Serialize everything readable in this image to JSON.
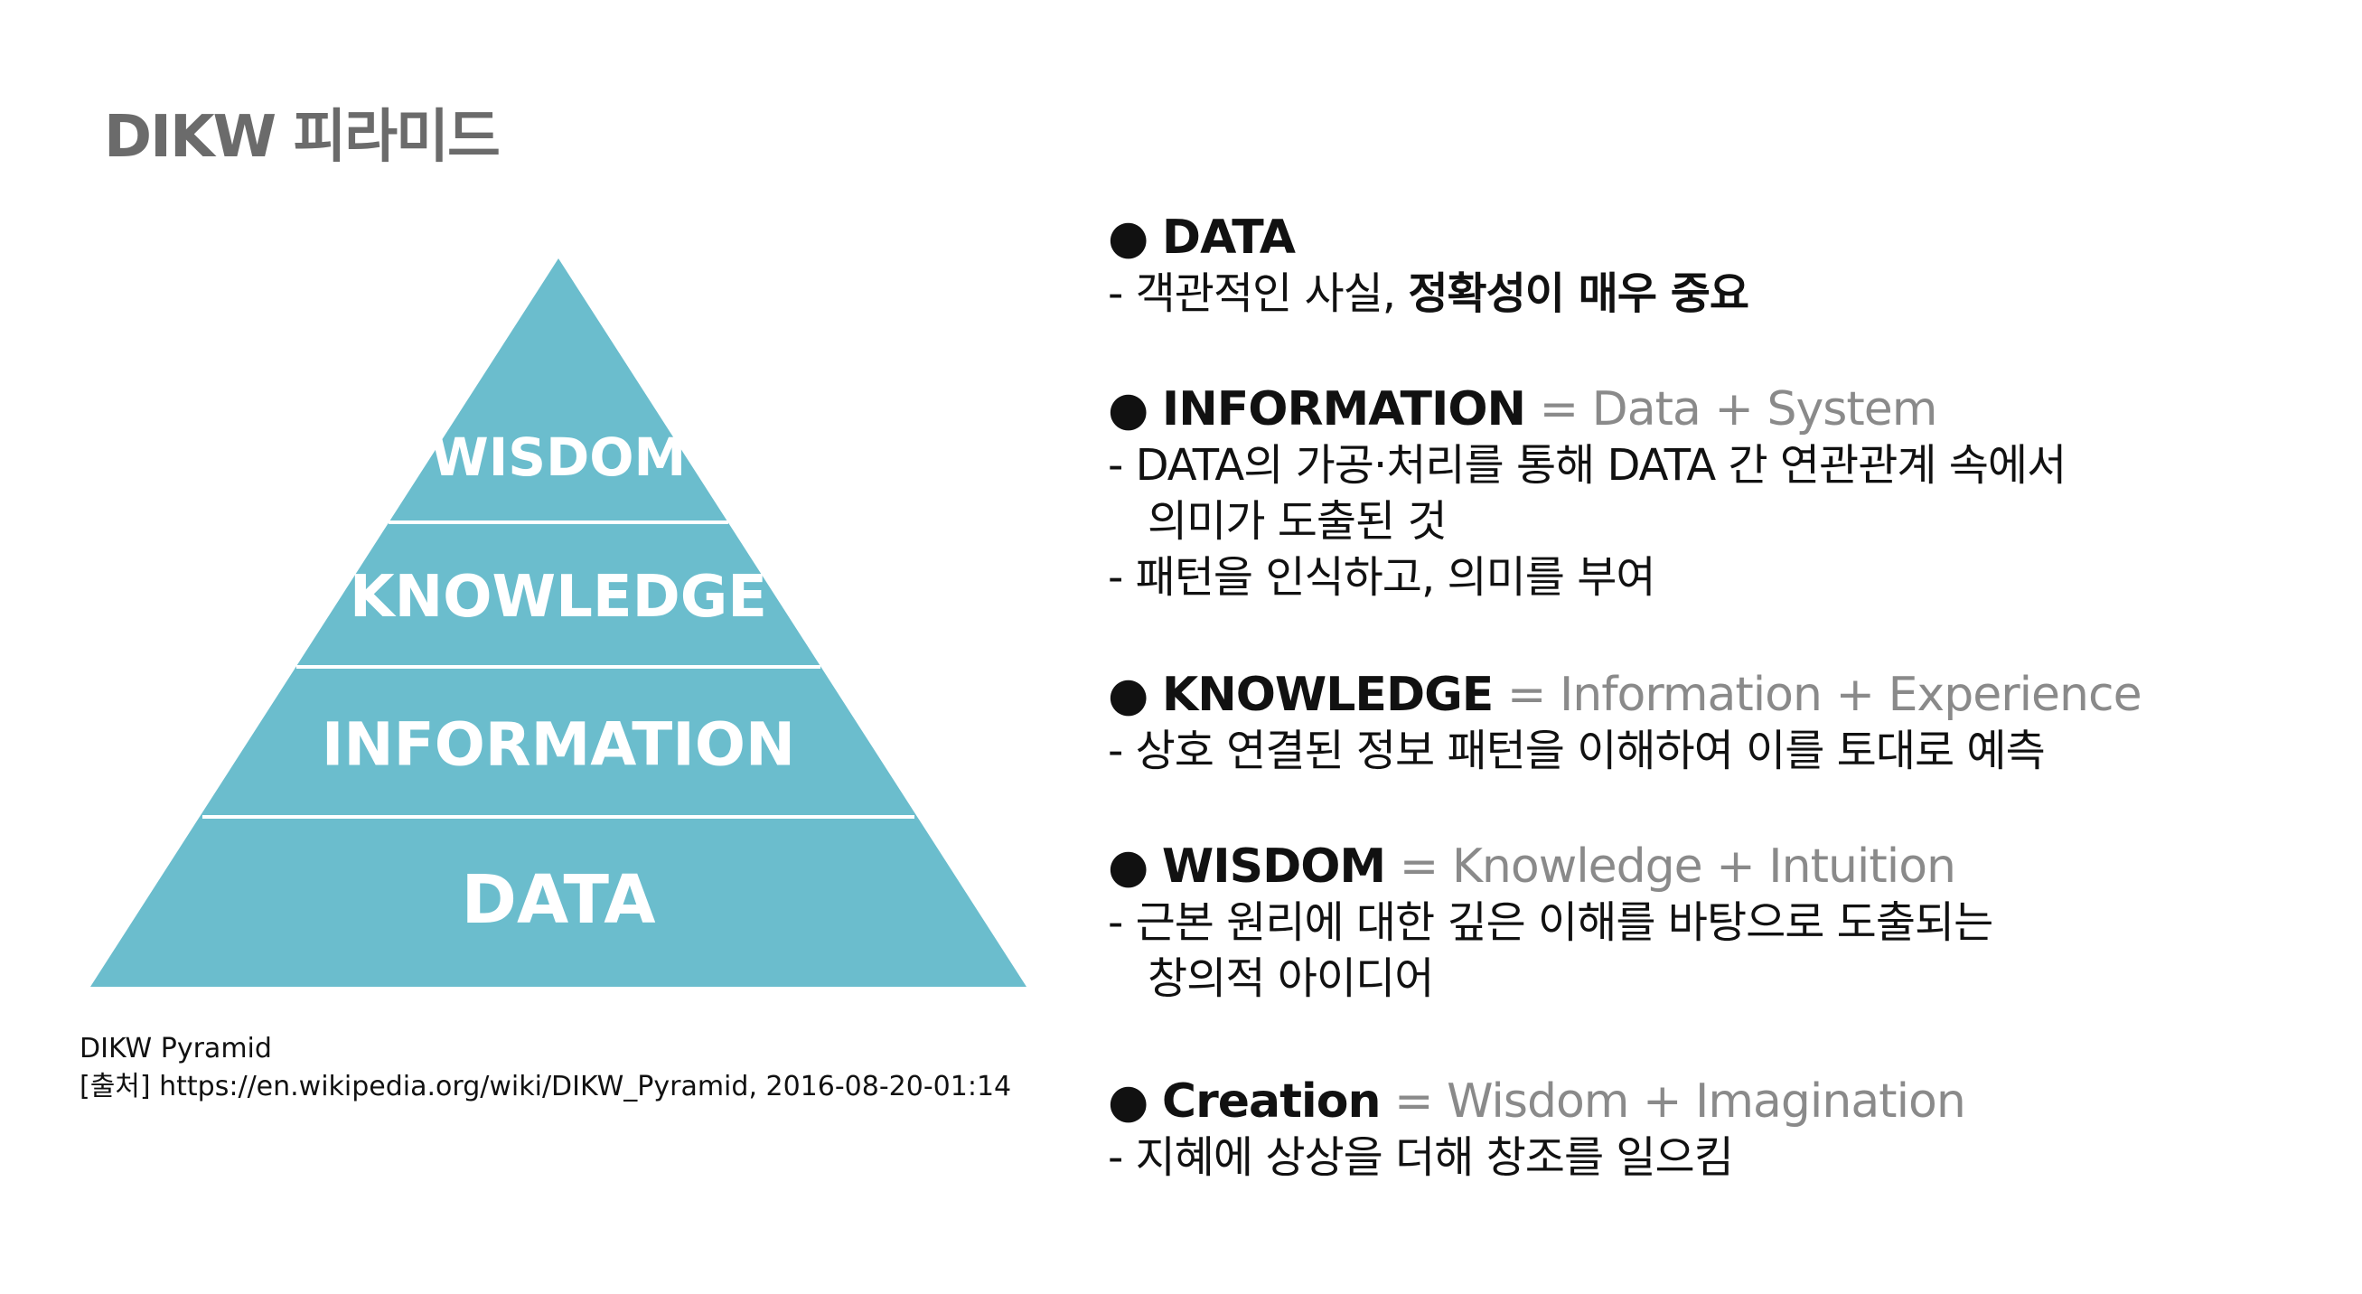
{
  "slide": {
    "title": "DIKW 피라미드"
  },
  "pyramid": {
    "levels": [
      "WISDOM",
      "KNOWLEDGE",
      "INFORMATION",
      "DATA"
    ],
    "fill_color": "#6bbdcd",
    "divider_color": "#ffffff"
  },
  "caption": {
    "line1": "DIKW Pyramid",
    "line2": "[출처] https://en.wikipedia.org/wiki/DIKW_Pyramid, 2016-08-20-01:14"
  },
  "definitions": {
    "bullet": "●",
    "data": {
      "term": "DATA",
      "line1_prefix": "- 객관적인 사실, ",
      "line1_emph": "정확성이 매우 중요"
    },
    "information": {
      "term": "INFORMATION",
      "formula": " = Data + System",
      "line1": "- DATA의 가공·처리를 통해 DATA 간 연관관계 속에서",
      "line2": "의미가 도출된 것",
      "line3": "- 패턴을 인식하고, 의미를 부여"
    },
    "knowledge": {
      "term": "KNOWLEDGE",
      "formula": " = Information + Experience",
      "line1": "- 상호 연결된 정보 패턴을 이해하여 이를 토대로 예측"
    },
    "wisdom": {
      "term": "WISDOM",
      "formula": " = Knowledge + Intuition",
      "line1": "- 근본 원리에 대한 깊은 이해를 바탕으로 도출되는",
      "line2": "창의적 아이디어"
    },
    "creation": {
      "term": "Creation",
      "formula": " = Wisdom + Imagination",
      "line1": "- 지혜에 상상을 더해 창조를 일으킴"
    }
  }
}
